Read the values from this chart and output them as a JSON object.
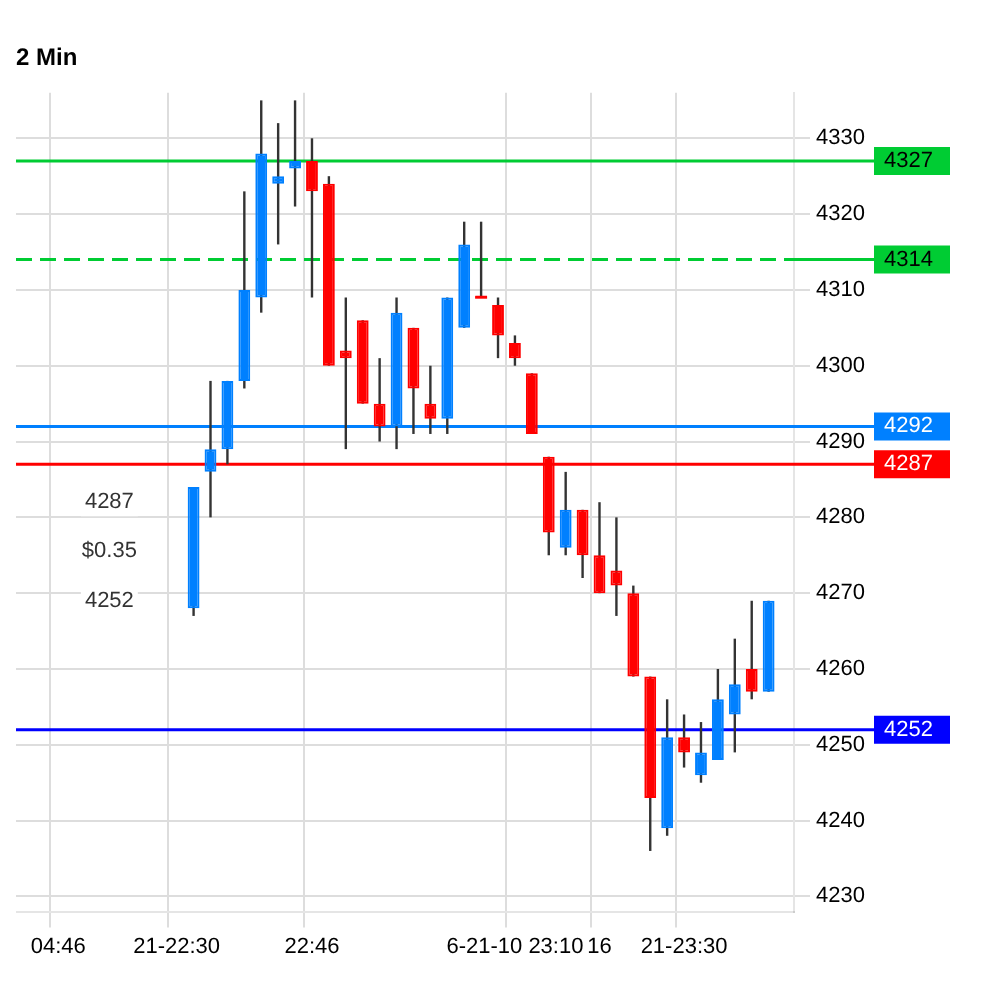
{
  "chart_data": {
    "type": "candlestick",
    "title": "2 Min",
    "categories": [
      null,
      null,
      "04:46",
      null,
      null,
      null,
      null,
      null,
      null,
      "21-22:30",
      null,
      null,
      null,
      null,
      null,
      null,
      null,
      "22:46",
      null,
      null,
      null,
      null,
      null,
      null,
      null,
      null,
      null,
      null,
      null,
      "6-21-10 23:10",
      null,
      null,
      null,
      null,
      "16",
      null,
      null,
      null,
      null,
      "21-23:30",
      null,
      null,
      null,
      null,
      null,
      null
    ],
    "ohlc": [
      null,
      null,
      null,
      null,
      null,
      null,
      null,
      null,
      null,
      null,
      [
        4268,
        4284,
        4267,
        4284
      ],
      [
        4286,
        4298,
        4280,
        4289
      ],
      [
        4289,
        4298,
        4287,
        4298
      ],
      [
        4298,
        4323,
        4297,
        4310
      ],
      [
        4309,
        4335,
        4307,
        4328
      ],
      [
        4324,
        4332,
        4316,
        4325
      ],
      [
        4326,
        4335,
        4321,
        4327
      ],
      [
        4327,
        4330,
        4309,
        4323
      ],
      [
        4324,
        4325,
        4300,
        4300
      ],
      [
        4302,
        4309,
        4289,
        4301
      ],
      [
        4306,
        4306,
        4295,
        4295
      ],
      [
        4295,
        4301,
        4290,
        4292
      ],
      [
        4292,
        4309,
        4289,
        4307
      ],
      [
        4305,
        4305,
        4291,
        4297
      ],
      [
        4295,
        4300,
        4291,
        4293
      ],
      [
        4293,
        4309,
        4291,
        4309
      ],
      [
        4305,
        4319,
        4305,
        4316
      ],
      [
        4309,
        4319,
        4309,
        4309
      ],
      [
        4308,
        4309,
        4301,
        4304
      ],
      [
        4303,
        4304,
        4300,
        4301
      ],
      [
        4299,
        4299,
        4291,
        4291
      ],
      [
        4288,
        4288,
        4275,
        4278
      ],
      [
        4276,
        4286,
        4275,
        4281
      ],
      [
        4281,
        4281,
        4272,
        4275
      ],
      [
        4275,
        4282,
        4270,
        4270
      ],
      [
        4273,
        4280,
        4267,
        4271
      ],
      [
        4270,
        4271,
        4259,
        4259
      ],
      [
        4259,
        4259,
        4236,
        4243
      ],
      [
        4239,
        4256,
        4238,
        4251
      ],
      [
        4251,
        4254,
        4247,
        4249
      ],
      [
        4246,
        4253,
        4245,
        4249
      ],
      [
        4248,
        4260,
        4248,
        4256
      ],
      [
        4254,
        4264,
        4249,
        4258
      ],
      [
        4260,
        4269,
        4256,
        4257
      ],
      [
        4257,
        4269,
        4257,
        4269
      ],
      null
    ],
    "colors": [
      null,
      null,
      null,
      null,
      null,
      null,
      null,
      null,
      null,
      null,
      "#0080ff",
      "#0080ff",
      "#0080ff",
      "#0080ff",
      "#0080ff",
      "#0080ff",
      "#0080ff",
      "#ff0000",
      "#ff0000",
      "#ff0000",
      "#ff0000",
      "#ff0000",
      "#0080ff",
      "#ff0000",
      "#ff0000",
      "#0080ff",
      "#0080ff",
      "#ff0000",
      "#ff0000",
      "#ff0000",
      "#ff0000",
      "#ff0000",
      "#0080ff",
      "#ff0000",
      "#ff0000",
      "#ff0000",
      "#ff0000",
      "#ff0000",
      "#0080ff",
      "#ff0000",
      "#0080ff",
      "#0080ff",
      "#0080ff",
      "#ff0000",
      "#0080ff",
      null
    ],
    "ylim": [
      4228,
      4336
    ],
    "yticks": [
      4230,
      4240,
      4250,
      4260,
      4270,
      4280,
      4290,
      4300,
      4310,
      4320,
      4330
    ],
    "grid": true,
    "legend": false,
    "ref_lines": [
      {
        "axis": "y",
        "value": 4327,
        "label": "4327",
        "color": "#00cc33",
        "line_style": "solid"
      },
      {
        "axis": "y",
        "value": 4314,
        "label": "4314",
        "color": "#00cc33",
        "line_style": "dashed"
      },
      {
        "axis": "y",
        "value": 4292,
        "label": "4292",
        "color": "#0080ff",
        "line_style": "solid"
      },
      {
        "axis": "y",
        "value": 4287,
        "label": "4287",
        "color": "#ff0000",
        "line_style": "solid"
      },
      {
        "axis": "y",
        "value": 4252,
        "label": "4252",
        "color": "#0000ff",
        "line_style": "solid"
      }
    ],
    "annotations": [
      "4287",
      "$0.35",
      "4252"
    ]
  }
}
